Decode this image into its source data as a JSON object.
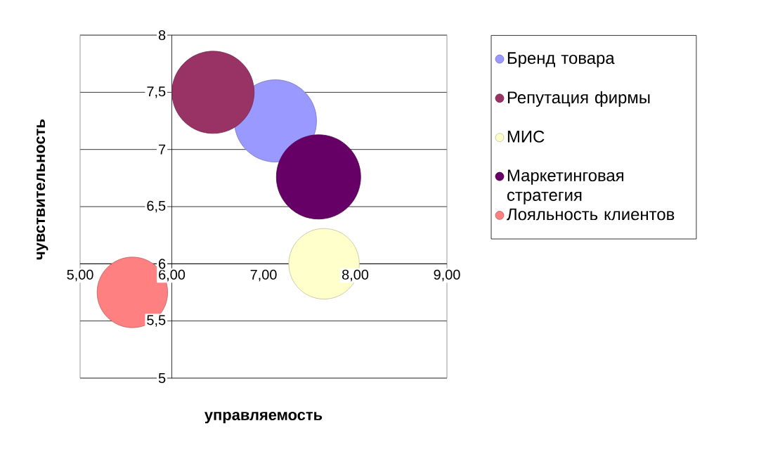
{
  "chart_data": {
    "type": "bubble",
    "xlabel": "управляемость",
    "ylabel": "чувствительность",
    "xlim": [
      5,
      9
    ],
    "ylim": [
      5,
      8
    ],
    "xticks": [
      {
        "value": 5,
        "label": "5,00"
      },
      {
        "value": 6,
        "label": "6,00"
      },
      {
        "value": 7,
        "label": "7,00"
      },
      {
        "value": 8,
        "label": "8,00"
      },
      {
        "value": 9,
        "label": "9,00"
      }
    ],
    "yticks": [
      5,
      {
        "value": 5.5,
        "label": "5,5"
      },
      6,
      {
        "value": 6.5,
        "label": "6,5"
      },
      7,
      {
        "value": 7.5,
        "label": "7,5"
      },
      8
    ],
    "grid": "y",
    "legend": "right",
    "series": [
      {
        "name": "Бренд товара",
        "color": "#9999ff",
        "x": [
          7.13
        ],
        "values": [
          7.25
        ],
        "sizes": [
          0.95
        ]
      },
      {
        "name": "Репутация фирмы",
        "color": "#993366",
        "x": [
          6.45
        ],
        "values": [
          7.5
        ],
        "sizes": [
          0.95
        ]
      },
      {
        "name": "МИС",
        "color": "#ffffcc",
        "x": [
          7.66
        ],
        "values": [
          6.0
        ],
        "sizes": [
          0.7
        ]
      },
      {
        "name": "Маркетинговая стратегия",
        "color": "#660066",
        "x": [
          7.6
        ],
        "values": [
          6.76
        ],
        "sizes": [
          1
        ]
      },
      {
        "name": "Лояльность клиентов",
        "color": "#ff8080",
        "x": [
          5.57
        ],
        "values": [
          5.75
        ],
        "sizes": [
          0.7
        ]
      }
    ]
  }
}
